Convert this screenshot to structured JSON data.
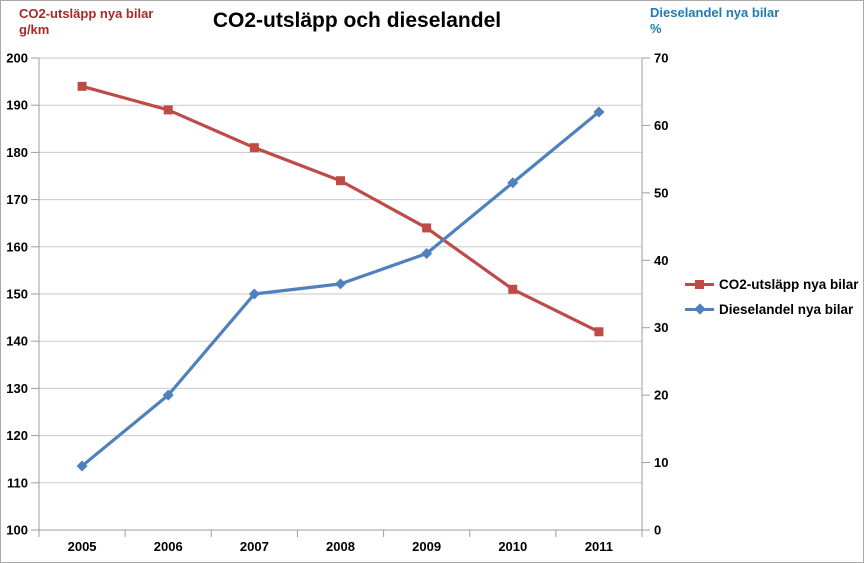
{
  "title": "CO2-utsläpp och dieselandel",
  "left_axis": {
    "title": "CO2-utsläpp nya bilar\ng/km",
    "color": "#a52a28"
  },
  "right_axis": {
    "title": "Dieselandel nya bilar\n%",
    "color": "#1f7ab6"
  },
  "legend": [
    {
      "label": "CO2-utsläpp nya bilar"
    },
    {
      "label": "Dieselandel nya bilar"
    }
  ],
  "chart_data": {
    "type": "line",
    "title": "CO2-utsläpp och dieselandel",
    "categories": [
      "2005",
      "2006",
      "2007",
      "2008",
      "2009",
      "2010",
      "2011"
    ],
    "series": [
      {
        "name": "CO2-utsläpp nya bilar",
        "axis": "left",
        "color": "#be4b48",
        "marker": "square",
        "values": [
          194,
          189,
          181,
          174,
          164,
          151,
          142
        ]
      },
      {
        "name": "Dieselandel nya bilar",
        "axis": "right",
        "color": "#4f81bd",
        "marker": "diamond",
        "values": [
          9.5,
          20,
          35,
          36.5,
          41,
          51.5,
          62
        ]
      }
    ],
    "left_ylabel": "CO2-utsläpp nya bilar g/km",
    "right_ylabel": "Dieselandel nya bilar %",
    "left_ylim": [
      100,
      200
    ],
    "left_step": 10,
    "right_ylim": [
      0,
      70
    ],
    "right_step": 10,
    "grid": true,
    "legend_position": "right",
    "gridline_color": "#c9c9c9",
    "axis_color": "#9e9e9e"
  }
}
